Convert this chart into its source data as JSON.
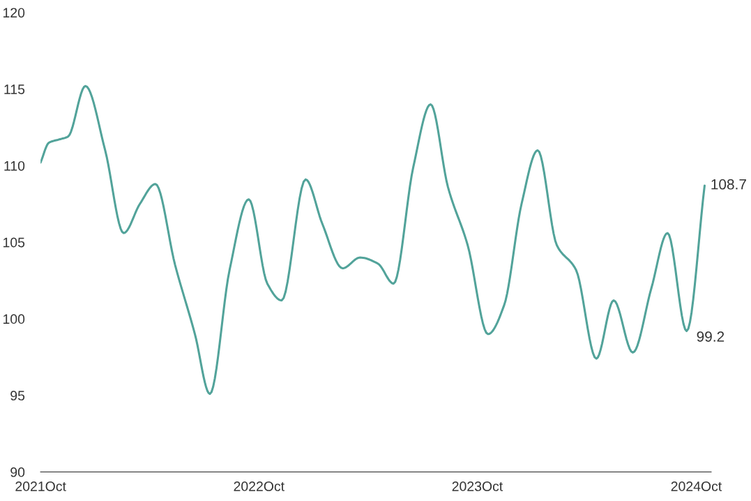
{
  "chart_data": {
    "type": "line",
    "x": [
      "2021-10-01",
      "2021-10-15",
      "2021-10-31",
      "2021-11-16",
      "2021-12-15",
      "2022-01-17",
      "2022-02-17",
      "2022-03-16",
      "2022-04-11",
      "2022-05-14",
      "2022-06-16",
      "2022-07-11",
      "2022-08-13",
      "2022-09-14",
      "2022-10-15",
      "2022-11-08",
      "2022-12-18",
      "2023-01-15",
      "2023-02-18",
      "2023-03-19",
      "2023-04-18",
      "2023-05-14",
      "2023-06-16",
      "2023-07-15",
      "2023-08-13",
      "2023-09-15",
      "2023-10-19",
      "2023-11-15",
      "2023-12-14",
      "2024-01-10",
      "2024-02-11",
      "2024-03-14",
      "2024-04-17",
      "2024-05-16",
      "2024-06-17",
      "2024-07-18",
      "2024-08-14",
      "2024-09-15",
      "2024-10-15"
    ],
    "series": [
      {
        "color": "#52a39a",
        "values": [
          110.2,
          111.5,
          111.7,
          111.9,
          115.2,
          111,
          105.6,
          107.5,
          108.8,
          103.5,
          99,
          95.1,
          103.2,
          107.8,
          102.3,
          101.2,
          109.1,
          106.2,
          103.3,
          104,
          103.6,
          102.3,
          109.9,
          114,
          108.6,
          104.8,
          99,
          100.9,
          107.5,
          111,
          104.8,
          103.2,
          97.4,
          101.2,
          97.8,
          102,
          105.6,
          99.2,
          108.7
        ]
      }
    ],
    "xlim": [
      "2021-10-01",
      "2024-10-26"
    ],
    "xticks": [
      {
        "value": "2021-10-01",
        "label": "2021Oct"
      },
      {
        "value": "2022-10-01",
        "label": "2022Oct"
      },
      {
        "value": "2023-10-01",
        "label": "2023Oct"
      },
      {
        "value": "2024-10-01",
        "label": "2024Oct"
      }
    ],
    "ylim": [
      90,
      120
    ],
    "yticks": [
      90,
      95,
      100,
      105,
      110,
      115,
      120
    ],
    "grid": false,
    "marker": "none",
    "line_style": "solid",
    "annotations": [
      {
        "text": "108.7",
        "x": "2024-10-15",
        "y": 108.7
      },
      {
        "text": "99.2",
        "x": "2024-09-15",
        "y": 99.2
      }
    ]
  }
}
